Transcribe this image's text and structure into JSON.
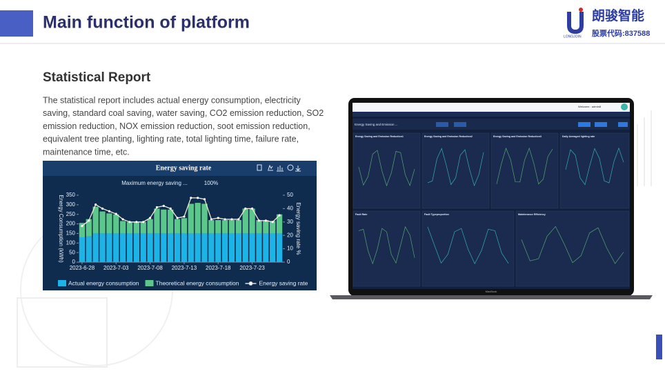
{
  "header": {
    "title": "Main function of platform"
  },
  "logo": {
    "brand": "朗骏智能",
    "stock": "股票代码:837588",
    "sub": "LONGJOIN"
  },
  "section": {
    "title": "Statistical Report",
    "lines": [
      "The statistical report includes actual energy consumption, electricity",
      "saving, standard coal saving, water saving, CO2 emission reduction, SO2",
      "emission reduction, NOX emission reduction, soot emission reduction,",
      "equivalent tree planting, lighting rate, total lighting time, failure rate,",
      "maintenance time, etc."
    ]
  },
  "chart_data": {
    "type": "stacked-bar-line",
    "title": "Energy saving rate",
    "annotations": [
      "Maximum energy saving ...",
      "100%"
    ],
    "ylabel": "Energy Consumption (kWh)",
    "y2label": "Energy saving rate %",
    "categories": [
      "2023-6-28",
      null,
      null,
      null,
      null,
      "2023-7-03",
      null,
      null,
      null,
      null,
      "2023-7-08",
      null,
      null,
      null,
      null,
      "2023-7-13",
      null,
      null,
      null,
      null,
      "2023-7-18",
      null,
      null,
      null,
      null,
      "2023-7-23",
      null,
      null,
      null,
      null
    ],
    "ylim": [
      0,
      350
    ],
    "yticks": [
      0,
      50,
      100,
      150,
      200,
      250,
      300,
      350
    ],
    "y2lim": [
      0,
      50
    ],
    "y2ticks": [
      0,
      10,
      20,
      30,
      40,
      50
    ],
    "series": [
      {
        "name": "Actual energy consumption",
        "color": "#1cb3e6",
        "values": [
          130,
          135,
          150,
          150,
          150,
          150,
          150,
          150,
          150,
          150,
          150,
          150,
          150,
          150,
          150,
          150,
          150,
          150,
          150,
          150,
          150,
          150,
          150,
          150,
          150,
          150,
          150,
          150,
          150,
          150
        ]
      },
      {
        "name": "Theoretical energy consumption",
        "color": "#5cc78a",
        "values": [
          75,
          90,
          140,
          115,
          105,
          100,
          65,
          60,
          60,
          60,
          75,
          130,
          125,
          125,
          75,
          80,
          155,
          160,
          155,
          70,
          70,
          70,
          70,
          70,
          130,
          130,
          70,
          70,
          65,
          100
        ]
      },
      {
        "name": "Energy saving rate",
        "color": "#f2ead2",
        "axis": "y2",
        "values": [
          27,
          31,
          43,
          40,
          38,
          36,
          32,
          30,
          30,
          30,
          33,
          41,
          42,
          40,
          33,
          34,
          48,
          48,
          47,
          32,
          33,
          32,
          32,
          32,
          40,
          40,
          31,
          31,
          30,
          35
        ]
      }
    ]
  },
  "dashboard": {
    "tab": "Energy Saving and Emission ...",
    "welcome": "Welcome : admin8",
    "device": "MacBook",
    "panels": [
      "Energy Saving and Emission Reduction1",
      "Energy Saving and Emission Reduction2",
      "Energy Saving and Emission Reduction3",
      "Daily Averaged lighting rate",
      "Fault Rate",
      "Fault Typeproportion",
      "Maintenance Efficiency"
    ]
  }
}
